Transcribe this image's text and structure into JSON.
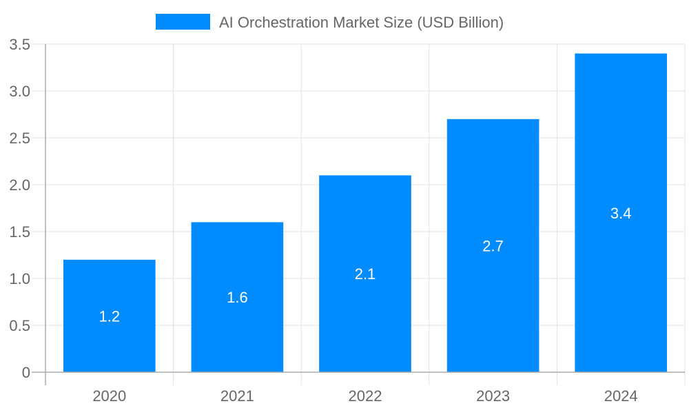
{
  "chart_data": {
    "type": "bar",
    "title": "",
    "xlabel": "",
    "ylabel": "",
    "categories": [
      "2020",
      "2021",
      "2022",
      "2023",
      "2024"
    ],
    "series": [
      {
        "name": "AI Orchestration Market Size (USD Billion)",
        "values": [
          1.2,
          1.6,
          2.1,
          2.7,
          3.4
        ],
        "color": "#008cff"
      }
    ],
    "ylim": [
      0,
      3.5
    ],
    "yticks": [
      "0",
      "0.5",
      "1.0",
      "1.5",
      "2.0",
      "2.5",
      "3.0",
      "3.5"
    ],
    "grid": true,
    "legend": "top-center",
    "data_labels": [
      "1.2",
      "1.6",
      "2.1",
      "2.7",
      "3.4"
    ]
  }
}
